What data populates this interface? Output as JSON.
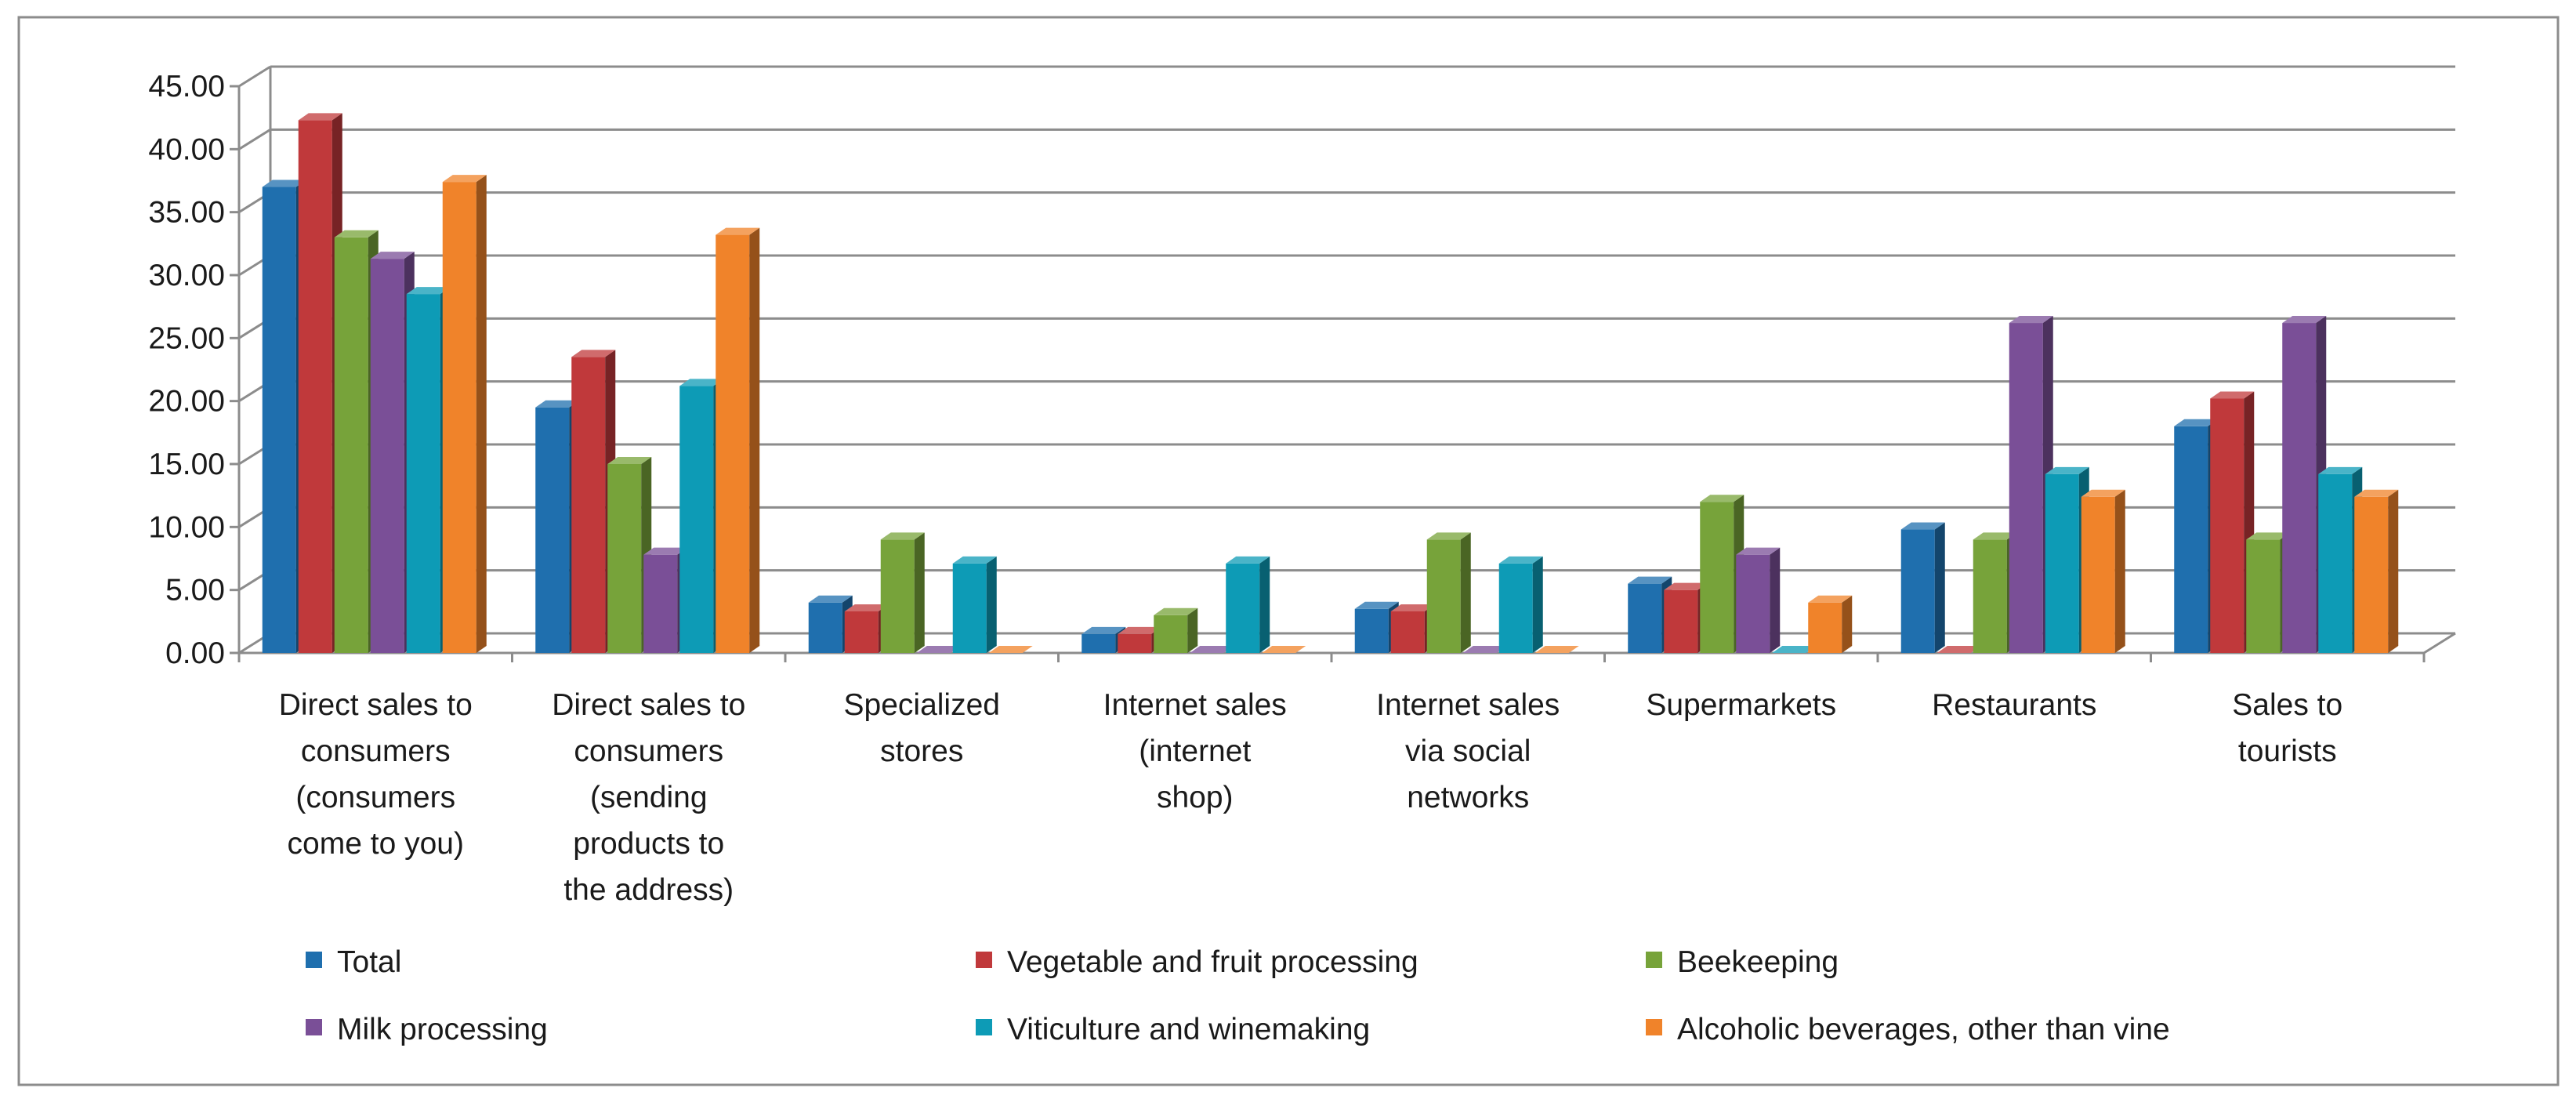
{
  "chart_data": {
    "type": "bar",
    "title": "",
    "xlabel": "",
    "ylabel": "",
    "ylim": [
      0,
      45
    ],
    "y_ticks": [
      "0.00",
      "5.00",
      "10.00",
      "15.00",
      "20.00",
      "25.00",
      "30.00",
      "35.00",
      "40.00",
      "45.00"
    ],
    "grid": true,
    "legend_position": "bottom",
    "categories": [
      [
        "Direct sales to",
        "consumers",
        "(consumers",
        "come to you)"
      ],
      [
        "Direct sales to",
        "consumers",
        "(sending",
        "products to",
        "the address)"
      ],
      [
        "Specialized",
        "stores"
      ],
      [
        "Internet sales",
        "(internet",
        "shop)"
      ],
      [
        "Internet sales",
        "via social",
        "networks"
      ],
      [
        "Supermarkets"
      ],
      [
        "Restaurants"
      ],
      [
        "Sales to",
        "tourists"
      ]
    ],
    "series": [
      {
        "name": "Total",
        "color": "#1F6FAE",
        "values": [
          37.0,
          19.5,
          4.0,
          1.5,
          3.5,
          5.5,
          9.8,
          18.0
        ]
      },
      {
        "name": "Vegetable and fruit processing",
        "color": "#C0393B",
        "values": [
          42.3,
          23.5,
          3.3,
          1.5,
          3.3,
          5.0,
          0.0,
          20.2
        ]
      },
      {
        "name": "Beekeeping",
        "color": "#77A33A",
        "values": [
          33.0,
          15.0,
          9.0,
          3.0,
          9.0,
          12.0,
          9.0,
          9.0
        ]
      },
      {
        "name": "Milk processing",
        "color": "#7A4F97",
        "values": [
          31.3,
          7.8,
          0.0,
          0.0,
          0.0,
          7.8,
          26.2,
          26.2
        ]
      },
      {
        "name": "Viticulture and winemaking",
        "color": "#0D9BB6",
        "values": [
          28.5,
          21.2,
          7.1,
          7.1,
          7.1,
          0.0,
          14.2,
          14.2
        ]
      },
      {
        "name": "Alcoholic beverages, other than vine",
        "color": "#F0832A",
        "values": [
          37.4,
          33.2,
          0.0,
          0.0,
          0.0,
          4.0,
          12.4,
          12.4
        ]
      }
    ]
  }
}
